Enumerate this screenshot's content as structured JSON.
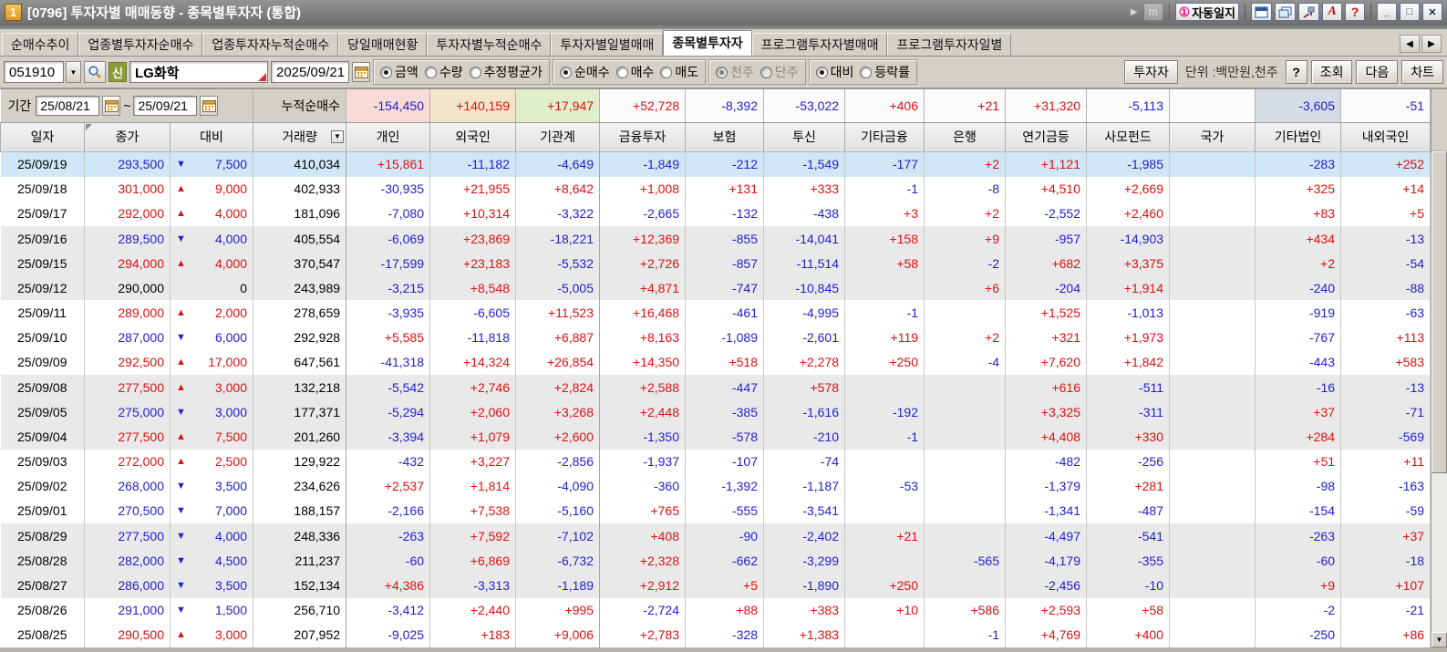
{
  "window": {
    "number_badge": "1",
    "title": "[0796] 투자자별 매매동향 - 종목별투자자 (통합)",
    "m_label": "m",
    "auto_journal_icon": "①",
    "auto_journal_label": "자동일지",
    "font_label": "A",
    "help_label": "?",
    "minimize_label": "_",
    "maximize_label": "□",
    "close_label": "✕"
  },
  "tabs": {
    "items": [
      {
        "label": "순매수추이",
        "active": false
      },
      {
        "label": "업종별투자자순매수",
        "active": false
      },
      {
        "label": "업종투자자누적순매수",
        "active": false
      },
      {
        "label": "당일매매현황",
        "active": false
      },
      {
        "label": "투자자별누적순매수",
        "active": false
      },
      {
        "label": "투자자별일별매매",
        "active": false
      },
      {
        "label": "종목별투자자",
        "active": true
      },
      {
        "label": "프로그램투자자별매매",
        "active": false
      },
      {
        "label": "프로그램투자자일별",
        "active": false
      }
    ]
  },
  "toolbar": {
    "stock_code": "051910",
    "stock_badge": "신",
    "stock_name": "LG화학",
    "date": "2025/09/21",
    "radio_groups": [
      {
        "name": "value-type",
        "disabled": false,
        "options": [
          {
            "label": "금액",
            "selected": true
          },
          {
            "label": "수량",
            "selected": false
          },
          {
            "label": "추정평균가",
            "selected": false
          }
        ]
      },
      {
        "name": "trade-type",
        "disabled": false,
        "options": [
          {
            "label": "순매수",
            "selected": true
          },
          {
            "label": "매수",
            "selected": false
          },
          {
            "label": "매도",
            "selected": false
          }
        ]
      },
      {
        "name": "share-unit",
        "disabled": true,
        "options": [
          {
            "label": "천주",
            "selected": true
          },
          {
            "label": "단주",
            "selected": false
          }
        ]
      },
      {
        "name": "compare-type",
        "disabled": false,
        "options": [
          {
            "label": "대비",
            "selected": true
          },
          {
            "label": "등락률",
            "selected": false
          }
        ]
      }
    ],
    "investor_button": "투자자",
    "unit_label": "단위 :백만원,천주",
    "help_button": "?",
    "search_button": "조회",
    "next_button": "다음",
    "chart_button": "차트"
  },
  "period": {
    "label": "기간",
    "start_date": "25/08/21",
    "tilde": "~",
    "end_date": "25/09/21",
    "cumulative_label": "누적순매수"
  },
  "table": {
    "columns": [
      "일자",
      "종가",
      "대비",
      "거래량",
      "개인",
      "외국인",
      "기관계",
      "금융투자",
      "보험",
      "투신",
      "기타금융",
      "은행",
      "연기금등",
      "사모펀드",
      "국가",
      "기타법인",
      "내외국인"
    ],
    "cumulative_values": [
      "-154,450",
      "+140,159",
      "+17,947",
      "+52,728",
      "-8,392",
      "-53,022",
      "+406",
      "+21",
      "+31,320",
      "-5,113",
      "",
      "-3,605",
      "-51"
    ],
    "rows": [
      {
        "date": "25/09/19",
        "close": "293,500",
        "dir": "down",
        "change": "7,500",
        "volume": "410,034",
        "selected": true,
        "values": [
          "+15,861",
          "-11,182",
          "-4,649",
          "-1,849",
          "-212",
          "-1,549",
          "-177",
          "+2",
          "+1,121",
          "-1,985",
          "",
          "-283",
          "+252"
        ]
      },
      {
        "date": "25/09/18",
        "close": "301,000",
        "dir": "up",
        "change": "9,000",
        "volume": "402,933",
        "selected": false,
        "values": [
          "-30,935",
          "+21,955",
          "+8,642",
          "+1,008",
          "+131",
          "+333",
          "-1",
          "-8",
          "+4,510",
          "+2,669",
          "",
          "+325",
          "+14"
        ]
      },
      {
        "date": "25/09/17",
        "close": "292,000",
        "dir": "up",
        "change": "4,000",
        "volume": "181,096",
        "selected": false,
        "values": [
          "-7,080",
          "+10,314",
          "-3,322",
          "-2,665",
          "-132",
          "-438",
          "+3",
          "+2",
          "-2,552",
          "+2,460",
          "",
          "+83",
          "+5"
        ]
      },
      {
        "date": "25/09/16",
        "close": "289,500",
        "dir": "down",
        "change": "4,000",
        "volume": "405,554",
        "selected": false,
        "values": [
          "-6,069",
          "+23,869",
          "-18,221",
          "+12,369",
          "-855",
          "-14,041",
          "+158",
          "+9",
          "-957",
          "-14,903",
          "",
          "+434",
          "-13"
        ]
      },
      {
        "date": "25/09/15",
        "close": "294,000",
        "dir": "up",
        "change": "4,000",
        "volume": "370,547",
        "selected": false,
        "values": [
          "-17,599",
          "+23,183",
          "-5,532",
          "+2,726",
          "-857",
          "-11,514",
          "+58",
          "-2",
          "+682",
          "+3,375",
          "",
          "+2",
          "-54"
        ]
      },
      {
        "date": "25/09/12",
        "close": "290,000",
        "dir": "flat",
        "change": "0",
        "volume": "243,989",
        "selected": false,
        "values": [
          "-3,215",
          "+8,548",
          "-5,005",
          "+4,871",
          "-747",
          "-10,845",
          "",
          "+6",
          "-204",
          "+1,914",
          "",
          "-240",
          "-88"
        ]
      },
      {
        "date": "25/09/11",
        "close": "289,000",
        "dir": "up",
        "change": "2,000",
        "volume": "278,659",
        "selected": false,
        "values": [
          "-3,935",
          "-6,605",
          "+11,523",
          "+16,468",
          "-461",
          "-4,995",
          "-1",
          "",
          "+1,525",
          "-1,013",
          "",
          "-919",
          "-63"
        ]
      },
      {
        "date": "25/09/10",
        "close": "287,000",
        "dir": "down",
        "change": "6,000",
        "volume": "292,928",
        "selected": false,
        "values": [
          "+5,585",
          "-11,818",
          "+6,887",
          "+8,163",
          "-1,089",
          "-2,601",
          "+119",
          "+2",
          "+321",
          "+1,973",
          "",
          "-767",
          "+113"
        ]
      },
      {
        "date": "25/09/09",
        "close": "292,500",
        "dir": "up",
        "change": "17,000",
        "volume": "647,561",
        "selected": false,
        "values": [
          "-41,318",
          "+14,324",
          "+26,854",
          "+14,350",
          "+518",
          "+2,278",
          "+250",
          "-4",
          "+7,620",
          "+1,842",
          "",
          "-443",
          "+583"
        ]
      },
      {
        "date": "25/09/08",
        "close": "277,500",
        "dir": "up",
        "change": "3,000",
        "volume": "132,218",
        "selected": false,
        "values": [
          "-5,542",
          "+2,746",
          "+2,824",
          "+2,588",
          "-447",
          "+578",
          "",
          "",
          "+616",
          "-511",
          "",
          "-16",
          "-13"
        ]
      },
      {
        "date": "25/09/05",
        "close": "275,000",
        "dir": "down",
        "change": "3,000",
        "volume": "177,371",
        "selected": false,
        "values": [
          "-5,294",
          "+2,060",
          "+3,268",
          "+2,448",
          "-385",
          "-1,616",
          "-192",
          "",
          "+3,325",
          "-311",
          "",
          "+37",
          "-71"
        ]
      },
      {
        "date": "25/09/04",
        "close": "277,500",
        "dir": "up",
        "change": "7,500",
        "volume": "201,260",
        "selected": false,
        "values": [
          "-3,394",
          "+1,079",
          "+2,600",
          "-1,350",
          "-578",
          "-210",
          "-1",
          "",
          "+4,408",
          "+330",
          "",
          "+284",
          "-569"
        ]
      },
      {
        "date": "25/09/03",
        "close": "272,000",
        "dir": "up",
        "change": "2,500",
        "volume": "129,922",
        "selected": false,
        "values": [
          "-432",
          "+3,227",
          "-2,856",
          "-1,937",
          "-107",
          "-74",
          "",
          "",
          "-482",
          "-256",
          "",
          "+51",
          "+11"
        ]
      },
      {
        "date": "25/09/02",
        "close": "268,000",
        "dir": "down",
        "change": "3,500",
        "volume": "234,626",
        "selected": false,
        "values": [
          "+2,537",
          "+1,814",
          "-4,090",
          "-360",
          "-1,392",
          "-1,187",
          "-53",
          "",
          "-1,379",
          "+281",
          "",
          "-98",
          "-163"
        ]
      },
      {
        "date": "25/09/01",
        "close": "270,500",
        "dir": "down",
        "change": "7,000",
        "volume": "188,157",
        "selected": false,
        "values": [
          "-2,166",
          "+7,538",
          "-5,160",
          "+765",
          "-555",
          "-3,541",
          "",
          "",
          "-1,341",
          "-487",
          "",
          "-154",
          "-59"
        ]
      },
      {
        "date": "25/08/29",
        "close": "277,500",
        "dir": "down",
        "change": "4,000",
        "volume": "248,336",
        "selected": false,
        "values": [
          "-263",
          "+7,592",
          "-7,102",
          "+408",
          "-90",
          "-2,402",
          "+21",
          "",
          "-4,497",
          "-541",
          "",
          "-263",
          "+37"
        ]
      },
      {
        "date": "25/08/28",
        "close": "282,000",
        "dir": "down",
        "change": "4,500",
        "volume": "211,237",
        "selected": false,
        "values": [
          "-60",
          "+6,869",
          "-6,732",
          "+2,328",
          "-662",
          "-3,299",
          "",
          "-565",
          "-4,179",
          "-355",
          "",
          "-60",
          "-18"
        ]
      },
      {
        "date": "25/08/27",
        "close": "286,000",
        "dir": "down",
        "change": "3,500",
        "volume": "152,134",
        "selected": false,
        "values": [
          "+4,386",
          "-3,313",
          "-1,189",
          "+2,912",
          "+5",
          "-1,890",
          "+250",
          "",
          "-2,456",
          "-10",
          "",
          "+9",
          "+107"
        ]
      },
      {
        "date": "25/08/26",
        "close": "291,000",
        "dir": "down",
        "change": "1,500",
        "volume": "256,710",
        "selected": false,
        "values": [
          "-3,412",
          "+2,440",
          "+995",
          "-2,724",
          "+88",
          "+383",
          "+10",
          "+586",
          "+2,593",
          "+58",
          "",
          "-2",
          "-21"
        ]
      },
      {
        "date": "25/08/25",
        "close": "290,500",
        "dir": "up",
        "change": "3,000",
        "volume": "207,952",
        "selected": false,
        "values": [
          "-9,025",
          "+183",
          "+9,006",
          "+2,783",
          "-328",
          "+1,383",
          "",
          "-1",
          "+4,769",
          "+400",
          "",
          "-250",
          "+86"
        ]
      }
    ]
  },
  "colors": {
    "positive": "#dd1111",
    "negative": "#2222cc",
    "selected_row": "#cfe7f7",
    "band_row": "#e9e9e9",
    "header_individual": "#f2d4cf",
    "header_foreigner": "#eedfc0",
    "header_institution": "#d9e9c0"
  }
}
